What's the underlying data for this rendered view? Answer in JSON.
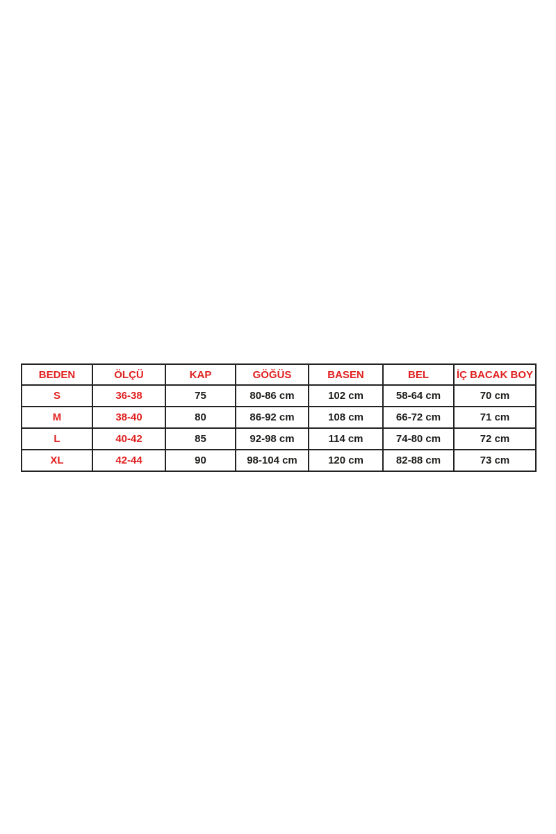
{
  "colors": {
    "header_text": "#e0201f",
    "size_value_text": "#e0201f",
    "measurement_text": "#1d1d1b",
    "border": "#222222",
    "background": "#ffffff"
  },
  "table": {
    "headers": [
      "BEDEN",
      "ÖLÇÜ",
      "KAP",
      "GÖĞÜS",
      "BASEN",
      "BEL",
      "İÇ BACAK BOY"
    ],
    "red_columns": [
      0,
      1
    ],
    "rows": [
      [
        "S",
        "36-38",
        "75",
        "80-86 cm",
        "102 cm",
        "58-64 cm",
        "70 cm"
      ],
      [
        "M",
        "38-40",
        "80",
        "86-92 cm",
        "108 cm",
        "66-72 cm",
        "71 cm"
      ],
      [
        "L",
        "40-42",
        "85",
        "92-98 cm",
        "114 cm",
        "74-80 cm",
        "72 cm"
      ],
      [
        "XL",
        "42-44",
        "90",
        "98-104 cm",
        "120 cm",
        "82-88 cm",
        "73 cm"
      ]
    ]
  },
  "chart_data": {
    "type": "table",
    "title": "",
    "columns": [
      "BEDEN",
      "ÖLÇÜ",
      "KAP",
      "GÖĞÜS",
      "BASEN",
      "BEL",
      "İÇ BACAK BOY"
    ],
    "rows": [
      {
        "BEDEN": "S",
        "ÖLÇÜ": "36-38",
        "KAP": "75",
        "GÖĞÜS": "80-86 cm",
        "BASEN": "102 cm",
        "BEL": "58-64 cm",
        "İÇ BACAK BOY": "70 cm"
      },
      {
        "BEDEN": "M",
        "ÖLÇÜ": "38-40",
        "KAP": "80",
        "GÖĞÜS": "86-92 cm",
        "BASEN": "108 cm",
        "BEL": "66-72 cm",
        "İÇ BACAK BOY": "71 cm"
      },
      {
        "BEDEN": "L",
        "ÖLÇÜ": "40-42",
        "KAP": "85",
        "GÖĞÜS": "92-98 cm",
        "BASEN": "114 cm",
        "BEL": "74-80 cm",
        "İÇ BACAK BOY": "72 cm"
      },
      {
        "BEDEN": "XL",
        "ÖLÇÜ": "42-44",
        "KAP": "90",
        "GÖĞÜS": "98-104 cm",
        "BASEN": "120 cm",
        "BEL": "82-88 cm",
        "İÇ BACAK BOY": "73 cm"
      }
    ]
  }
}
